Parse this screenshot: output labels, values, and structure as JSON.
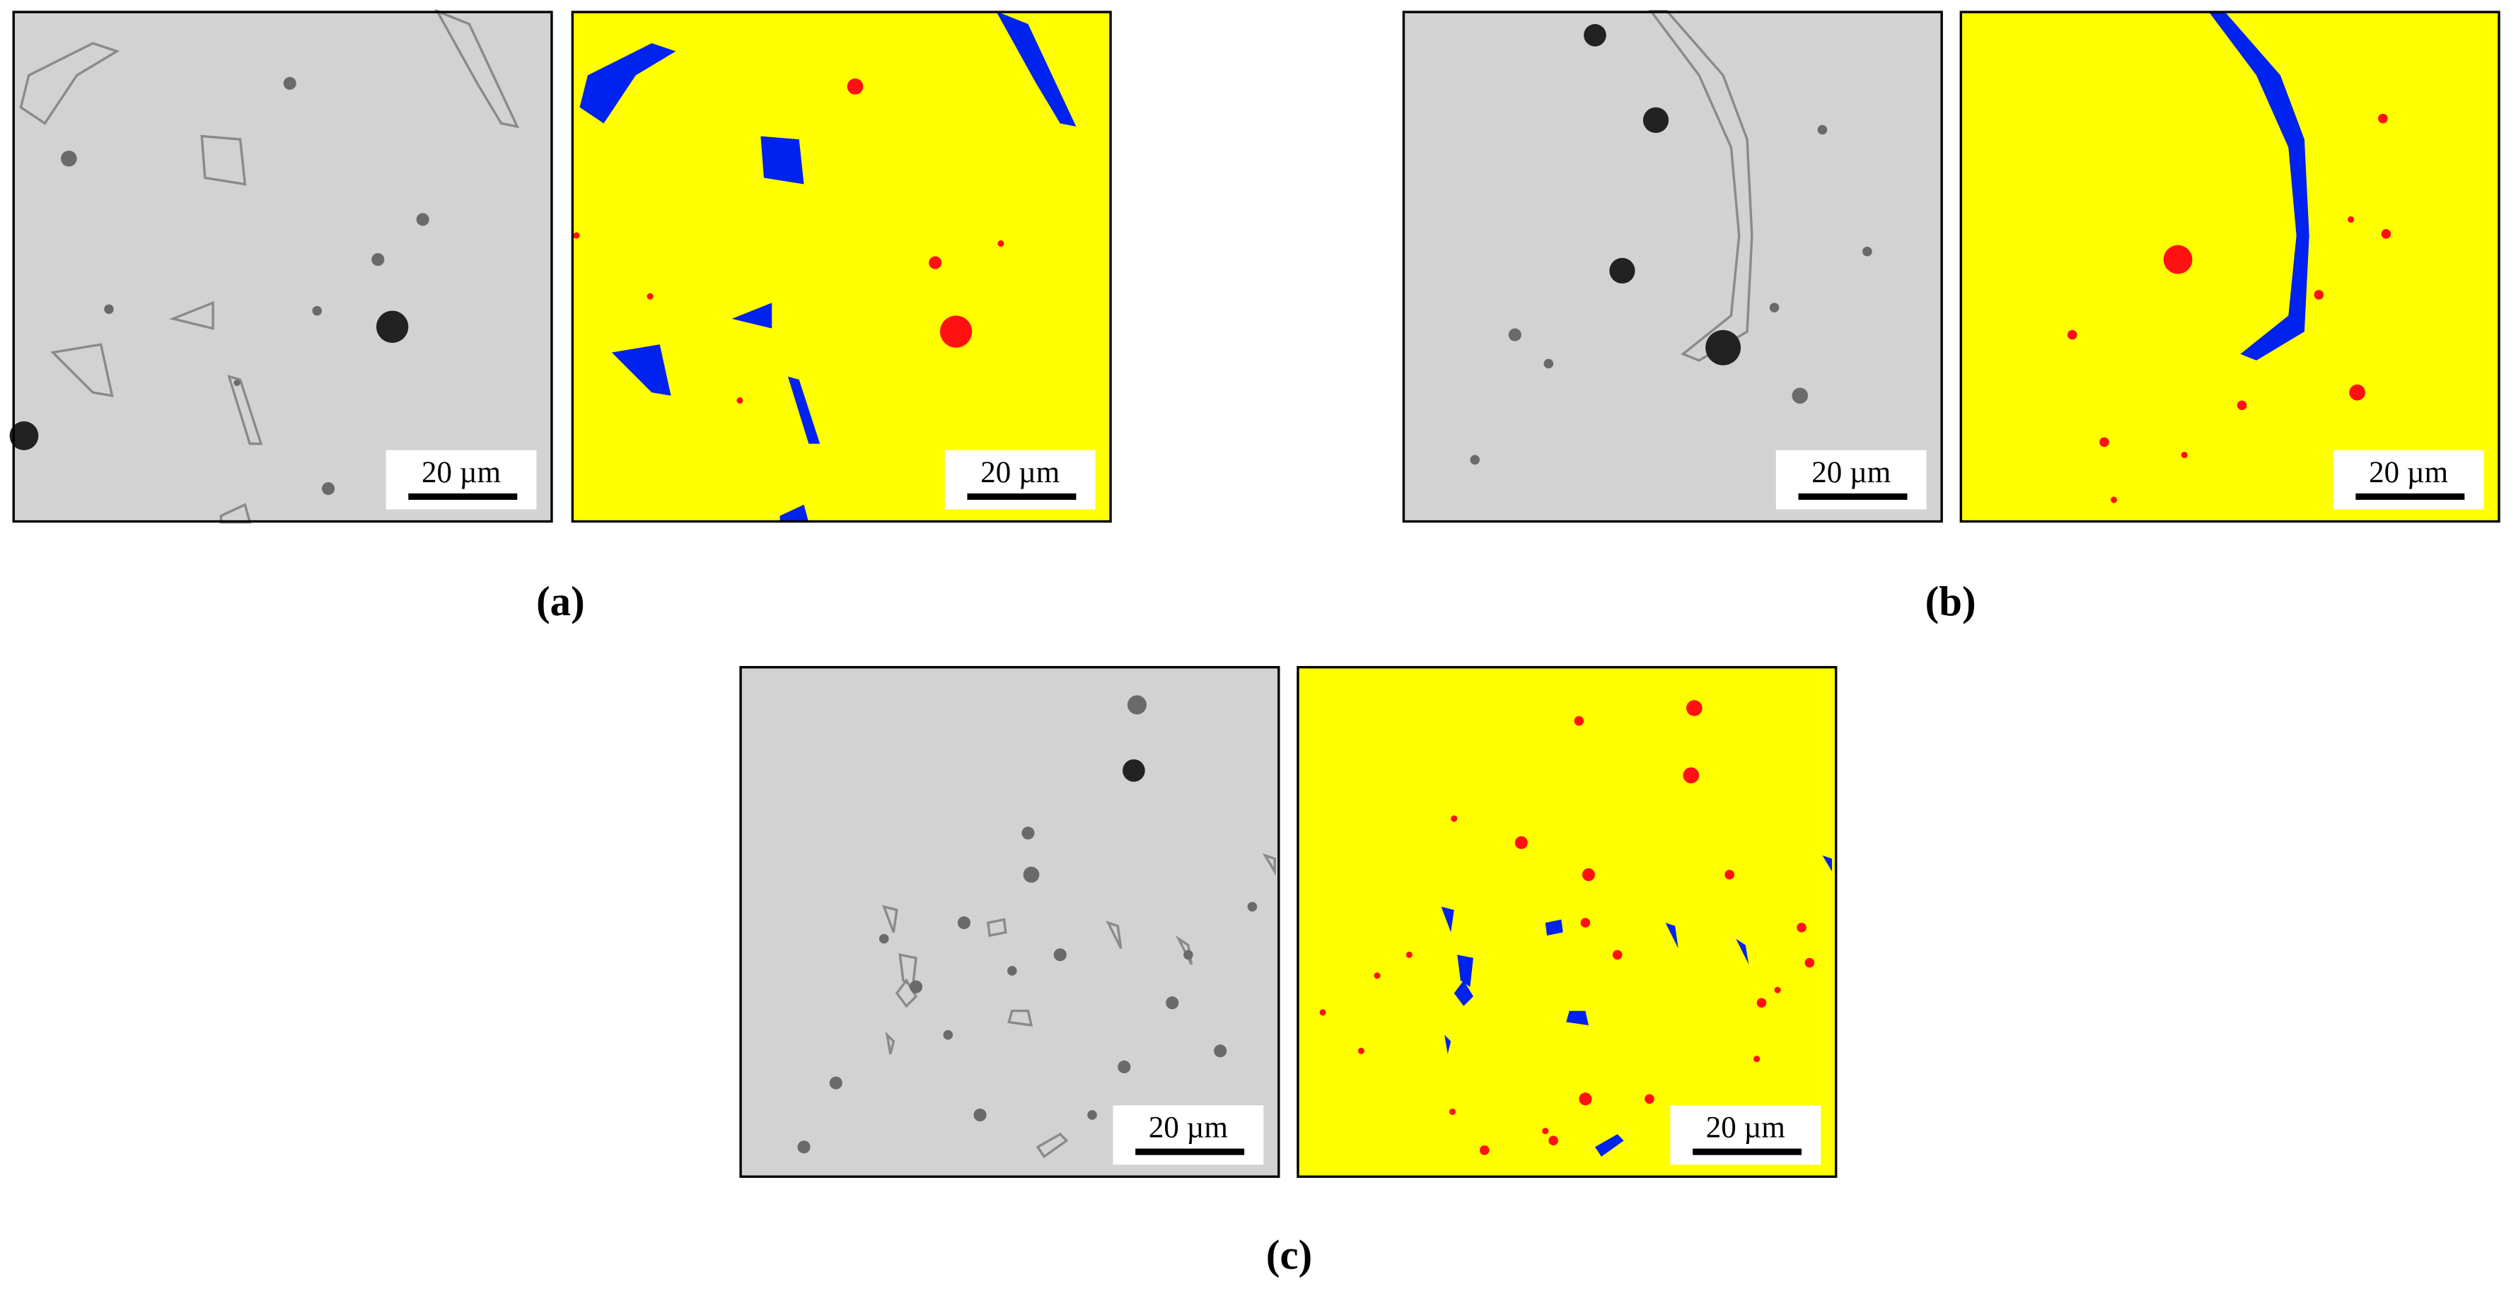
{
  "figure": {
    "panels": [
      {
        "label": "(a)",
        "images": [
          {
            "scale_bar": "20 µm"
          },
          {
            "scale_bar": "20 µm"
          }
        ]
      },
      {
        "label": "(b)",
        "images": [
          {
            "scale_bar": "20 µm"
          },
          {
            "scale_bar": "20 µm"
          }
        ]
      },
      {
        "label": "(c)",
        "images": [
          {
            "scale_bar": "20 µm"
          },
          {
            "scale_bar": "20 µm"
          }
        ]
      }
    ]
  }
}
